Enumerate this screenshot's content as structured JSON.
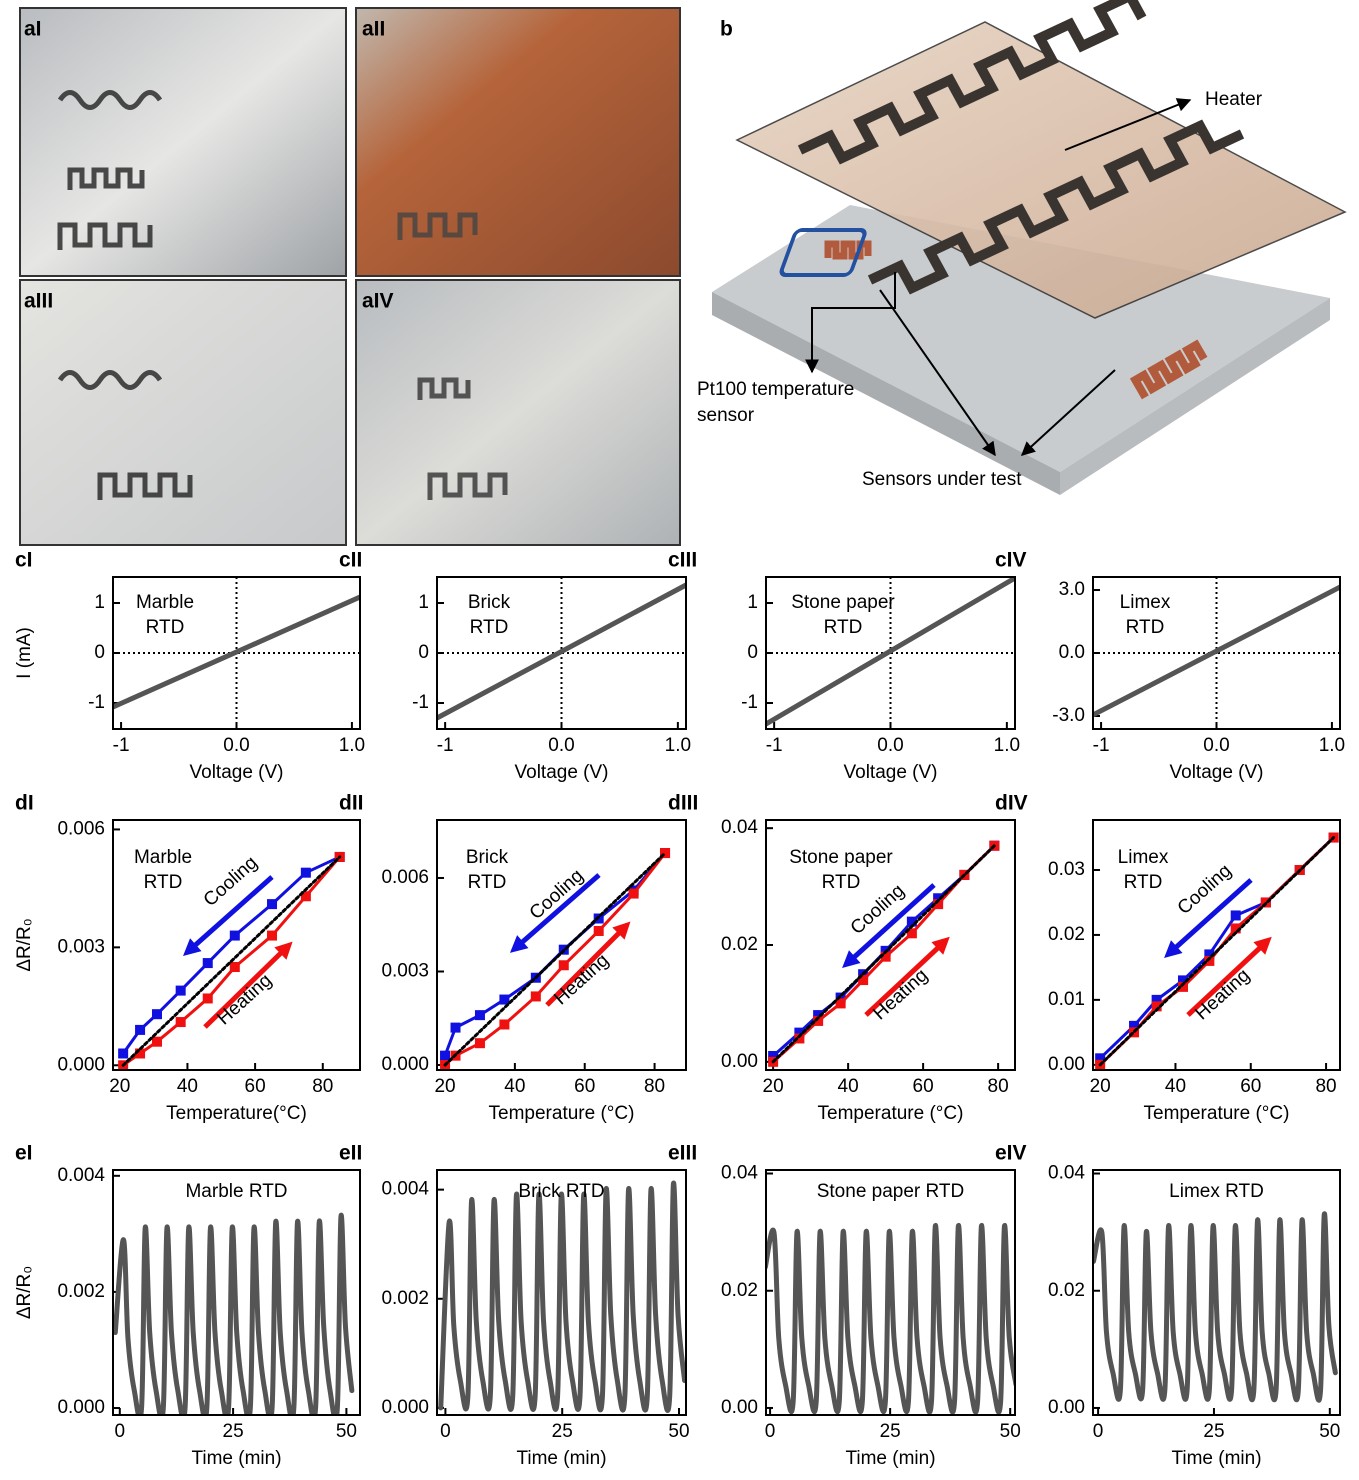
{
  "panels_a": [
    {
      "label": "aI"
    },
    {
      "label": "aII"
    },
    {
      "label": "aIII"
    },
    {
      "label": "aIV"
    }
  ],
  "panel_b": {
    "label": "b",
    "heater": "Heater",
    "pt100": [
      "Pt100 temperature",
      "sensor"
    ],
    "sensors": "Sensors under test"
  },
  "chart_data": [
    {
      "type": "line",
      "panel": "cI",
      "annotation": [
        "Marble",
        "RTD"
      ],
      "annotation_color": "#b3bd6f",
      "xlabel": "Voltage (V)",
      "ylabel": "I (mA)",
      "xlim": [
        -1.07,
        1.07
      ],
      "ylim": [
        -1.52,
        1.52
      ],
      "xticks": [
        -1,
        {
          "value": 0,
          "label": "0.0"
        },
        {
          "value": 1,
          "label": "1.0"
        }
      ],
      "yticks": [
        -1,
        0,
        1
      ],
      "zero_lines": true,
      "series": [
        {
          "color": "#555555",
          "x": [
            -1.07,
            1.07
          ],
          "values": [
            -1.08,
            1.12
          ]
        }
      ]
    },
    {
      "type": "line",
      "panel": "cII",
      "annotation": [
        "Brick",
        "RTD"
      ],
      "annotation_color": "#a0557a",
      "xlabel": "Voltage (V)",
      "xlim": [
        -1.07,
        1.07
      ],
      "ylim": [
        -1.52,
        1.52
      ],
      "xticks": [
        -1,
        {
          "value": 0,
          "label": "0.0"
        },
        {
          "value": 1,
          "label": "1.0"
        }
      ],
      "yticks": [
        -1,
        0,
        1
      ],
      "zero_lines": true,
      "series": [
        {
          "color": "#555555",
          "x": [
            -1.07,
            1.07
          ],
          "values": [
            -1.3,
            1.36
          ]
        }
      ]
    },
    {
      "type": "line",
      "panel": "cIII",
      "annotation": [
        "Stone paper",
        "RTD"
      ],
      "annotation_color": "#f07a5a",
      "xlabel": "Voltage (V)",
      "xlim": [
        -1.07,
        1.07
      ],
      "ylim": [
        -1.52,
        1.52
      ],
      "xticks": [
        -1,
        {
          "value": 0,
          "label": "0.0"
        },
        {
          "value": 1,
          "label": "1.0"
        }
      ],
      "yticks": [
        -1,
        0,
        1
      ],
      "zero_lines": true,
      "series": [
        {
          "color": "#555555",
          "x": [
            -1.07,
            1.07
          ],
          "values": [
            -1.42,
            1.5
          ]
        }
      ]
    },
    {
      "type": "line",
      "panel": "cIV",
      "annotation": [
        "Limex",
        "RTD"
      ],
      "annotation_color": "#6e80a0",
      "xlabel": "Voltage (V)",
      "xlim": [
        -1.07,
        1.07
      ],
      "ylim": [
        -3.62,
        3.62
      ],
      "xticks": [
        -1,
        {
          "value": 0,
          "label": "0.0"
        },
        {
          "value": 1,
          "label": "1.0"
        }
      ],
      "yticks": [
        {
          "value": -3,
          "label": "-3.0"
        },
        {
          "value": 0,
          "label": "0.0"
        },
        {
          "value": 3,
          "label": "3.0"
        }
      ],
      "zero_lines": true,
      "series": [
        {
          "color": "#555555",
          "x": [
            -1.07,
            1.07
          ],
          "values": [
            -2.95,
            3.14
          ]
        }
      ]
    },
    {
      "type": "hysteresis",
      "panel": "dI",
      "annotation": [
        "Marble",
        "RTD"
      ],
      "annotation_color": "#b3bd6f",
      "xlabel": "Temperature(°C)",
      "ylabel": "ΔR/R₀",
      "xlim": [
        18,
        91
      ],
      "ylim": [
        -0.00012,
        0.00624
      ],
      "xticks": [
        20,
        40,
        60,
        80
      ],
      "yticks": [
        {
          "value": 0,
          "label": "0.000"
        },
        0.003,
        0.006
      ],
      "series": [
        {
          "name": "Cooling",
          "color": "#1010e0",
          "x": [
            21,
            26,
            31,
            38,
            46,
            54,
            65,
            75,
            85
          ],
          "values": [
            0.0003,
            0.0009,
            0.0013,
            0.0019,
            0.0026,
            0.0033,
            0.0041,
            0.0049,
            0.0053
          ]
        },
        {
          "name": "Heating",
          "color": "#f01010",
          "x": [
            21,
            26,
            31,
            38,
            46,
            54,
            65,
            75,
            85
          ],
          "values": [
            0,
            0.0003,
            0.0006,
            0.0011,
            0.0017,
            0.0025,
            0.0033,
            0.0043,
            0.0053
          ]
        },
        {
          "color": "#000000",
          "dotted": true,
          "x": [
            21,
            85
          ],
          "values": [
            0,
            0.0053
          ]
        }
      ]
    },
    {
      "type": "hysteresis",
      "panel": "dII",
      "annotation": [
        "Brick",
        "RTD"
      ],
      "annotation_color": "#a0557a",
      "xlabel": "Temperature (°C)",
      "xlim": [
        17.7,
        89
      ],
      "ylim": [
        -0.00016,
        0.00786
      ],
      "xticks": [
        20,
        40,
        60,
        80
      ],
      "yticks": [
        {
          "value": 0,
          "label": "0.000"
        },
        0.003,
        0.006
      ],
      "series": [
        {
          "name": "Cooling",
          "color": "#1010e0",
          "x": [
            20,
            23,
            30,
            37,
            46,
            54,
            64,
            74,
            83
          ],
          "values": [
            0.0003,
            0.0012,
            0.0016,
            0.0021,
            0.0028,
            0.0037,
            0.0047,
            0.0056,
            0.0068
          ]
        },
        {
          "name": "Heating",
          "color": "#f01010",
          "x": [
            20,
            23,
            30,
            37,
            46,
            54,
            64,
            74,
            83
          ],
          "values": [
            0,
            0.0003,
            0.0007,
            0.0013,
            0.0022,
            0.0032,
            0.0043,
            0.0055,
            0.0068
          ]
        },
        {
          "color": "#000000",
          "dotted": true,
          "x": [
            20,
            83
          ],
          "values": [
            0,
            0.0068
          ]
        }
      ]
    },
    {
      "type": "hysteresis",
      "panel": "dIII",
      "annotation": [
        "Stone paper",
        "RTD"
      ],
      "annotation_color": "#f07a5a",
      "xlabel": "Temperature (°C)",
      "xlim": [
        18.1,
        84.5
      ],
      "ylim": [
        -0.0014,
        0.0414
      ],
      "xticks": [
        20,
        40,
        60,
        80
      ],
      "yticks": [
        {
          "value": 0,
          "label": "0.00"
        },
        0.02,
        0.04
      ],
      "series": [
        {
          "name": "Cooling",
          "color": "#1010e0",
          "x": [
            20,
            27,
            32,
            38,
            44,
            50,
            57,
            64,
            71,
            79
          ],
          "values": [
            0.001,
            0.005,
            0.008,
            0.011,
            0.015,
            0.019,
            0.024,
            0.028,
            0.032,
            0.037
          ]
        },
        {
          "name": "Heating",
          "color": "#f01010",
          "x": [
            20,
            27,
            32,
            38,
            44,
            50,
            57,
            64,
            71,
            79
          ],
          "values": [
            0,
            0.004,
            0.007,
            0.01,
            0.014,
            0.018,
            0.022,
            0.027,
            0.032,
            0.037
          ]
        },
        {
          "color": "#000000",
          "dotted": true,
          "x": [
            20,
            79
          ],
          "values": [
            0,
            0.037
          ]
        }
      ]
    },
    {
      "type": "hysteresis",
      "panel": "dIV",
      "annotation": [
        "Limex",
        "RTD"
      ],
      "annotation_color": "#6e80a0",
      "xlabel": "Temperature (°C)",
      "xlim": [
        18.1,
        83.7
      ],
      "ylim": [
        -0.0008,
        0.0377
      ],
      "xticks": [
        20,
        40,
        60,
        80
      ],
      "yticks": [
        {
          "value": 0,
          "label": "0.00"
        },
        0.01,
        0.02,
        0.03
      ],
      "series": [
        {
          "name": "Cooling",
          "color": "#1010e0",
          "x": [
            20,
            29,
            35,
            42,
            49,
            56,
            64,
            73,
            82
          ],
          "values": [
            0.001,
            0.006,
            0.01,
            0.013,
            0.017,
            0.023,
            0.025,
            0.03,
            0.035
          ]
        },
        {
          "name": "Heating",
          "color": "#f01010",
          "x": [
            20,
            29,
            35,
            42,
            49,
            56,
            64,
            73,
            82
          ],
          "values": [
            0,
            0.005,
            0.009,
            0.012,
            0.016,
            0.021,
            0.025,
            0.03,
            0.035
          ]
        },
        {
          "color": "#000000",
          "dotted": true,
          "x": [
            20,
            82
          ],
          "values": [
            0,
            0.035
          ]
        }
      ]
    },
    {
      "type": "timeseries",
      "panel": "eI",
      "annotation": "Marble RTD",
      "annotation_color": "#b3bd6f",
      "xlabel": "Time (min)",
      "ylabel": "ΔR/R₀",
      "xlim": [
        -1.5,
        53
      ],
      "ylim": [
        -0.00012,
        0.0041
      ],
      "xticks": [
        0,
        25,
        50
      ],
      "yticks": [
        {
          "value": 0,
          "label": "0.000"
        },
        0.002,
        0.004
      ],
      "series": [
        {
          "color": "#555555",
          "x": [
            -1,
            0.8,
            1.8,
            3.2,
            4.8,
            5.6,
            6.6,
            8,
            9.6,
            10.4,
            11.4,
            12.8,
            14.4,
            15.2,
            16.2,
            17.6,
            19.2,
            20,
            21,
            22.4,
            24,
            24.8,
            25.8,
            27.2,
            28.8,
            29.6,
            30.6,
            32,
            33.6,
            34.4,
            35.4,
            36.8,
            38.4,
            39.2,
            40.2,
            41.6,
            43.2,
            44,
            45,
            46.4,
            48,
            48.8,
            49.8,
            51.2
          ],
          "values": [
            0.0013,
            0.0029,
            0.0012,
            0.0003,
            0,
            0.0031,
            0.0013,
            0.0003,
            0,
            0.0031,
            0.0013,
            0.0003,
            0,
            0.0031,
            0.0013,
            0.0003,
            0,
            0.0031,
            0.0013,
            0.0003,
            0,
            0.0031,
            0.0013,
            0.0003,
            0,
            0.0031,
            0.0013,
            0.0003,
            0,
            0.0032,
            0.0013,
            0.0003,
            0,
            0.0032,
            0.0013,
            0.0003,
            0,
            0.0032,
            0.0014,
            0.0003,
            0,
            0.0033,
            0.0014,
            0.0003
          ]
        }
      ]
    },
    {
      "type": "timeseries",
      "panel": "eII",
      "annotation": "Brick RTD",
      "annotation_color": "#a0557a",
      "xlabel": "Time (min)",
      "xlim": [
        -1.8,
        51.5
      ],
      "ylim": [
        -0.00013,
        0.00436
      ],
      "xticks": [
        0,
        25,
        50
      ],
      "yticks": [
        {
          "value": 0,
          "label": "0.000"
        },
        0.002,
        0.004
      ],
      "series": [
        {
          "color": "#555555",
          "x": [
            -1,
            0.8,
            1.8,
            3.2,
            4.8,
            5.6,
            6.6,
            8,
            9.6,
            10.4,
            11.4,
            12.8,
            14.4,
            15.2,
            16.2,
            17.6,
            19.2,
            20,
            21,
            22.4,
            24,
            24.8,
            25.8,
            27.2,
            28.8,
            29.6,
            30.6,
            32,
            33.6,
            34.4,
            35.4,
            36.8,
            38.4,
            39.2,
            40.2,
            41.6,
            43.2,
            44,
            45,
            46.4,
            48,
            48.8,
            49.8,
            51.2
          ],
          "values": [
            0,
            0.0034,
            0.0015,
            0.0005,
            0.0002,
            0.0038,
            0.0016,
            0.0005,
            0.0002,
            0.0038,
            0.0016,
            0.0005,
            0.0002,
            0.0039,
            0.0016,
            0.0005,
            0.0002,
            0.0039,
            0.0016,
            0.0005,
            0.0002,
            0.0039,
            0.0016,
            0.0005,
            0.0002,
            0.0039,
            0.0016,
            0.0005,
            0.0002,
            0.004,
            0.0017,
            0.0005,
            0.0002,
            0.004,
            0.0017,
            0.0005,
            0.0002,
            0.004,
            0.0017,
            0.0005,
            0.0002,
            0.0041,
            0.0017,
            0.0005
          ]
        }
      ]
    },
    {
      "type": "timeseries",
      "panel": "eIII",
      "annotation": "Stone paper RTD",
      "annotation_color": "#f07a5a",
      "xlabel": "Time (min)",
      "xlim": [
        -0.85,
        51
      ],
      "ylim": [
        -0.0012,
        0.0406
      ],
      "xticks": [
        0,
        25,
        50
      ],
      "yticks": [
        {
          "value": 0,
          "label": "0.00"
        },
        0.02,
        0.04
      ],
      "series": [
        {
          "color": "#555555",
          "x": [
            -1,
            0.8,
            1.8,
            3.2,
            4.8,
            5.6,
            6.6,
            8,
            9.6,
            10.4,
            11.4,
            12.8,
            14.4,
            15.2,
            16.2,
            17.6,
            19.2,
            20,
            21,
            22.4,
            24,
            24.8,
            25.8,
            27.2,
            28.8,
            29.6,
            30.6,
            32,
            33.6,
            34.4,
            35.4,
            36.8,
            38.4,
            39.2,
            40.2,
            41.6,
            43.2,
            44,
            45,
            46.4,
            48,
            48.8,
            49.8,
            51.2
          ],
          "values": [
            0.024,
            0.03,
            0.012,
            0.004,
            0.001,
            0.03,
            0.012,
            0.004,
            0.001,
            0.03,
            0.012,
            0.004,
            0.001,
            0.03,
            0.012,
            0.004,
            0.001,
            0.03,
            0.012,
            0.004,
            0.001,
            0.03,
            0.012,
            0.004,
            0.001,
            0.03,
            0.012,
            0.004,
            0.001,
            0.031,
            0.012,
            0.004,
            0.001,
            0.031,
            0.012,
            0.004,
            0.001,
            0.031,
            0.012,
            0.004,
            0.001,
            0.031,
            0.012,
            0.004
          ]
        }
      ]
    },
    {
      "type": "timeseries",
      "panel": "eIV",
      "annotation": "Limex RTD",
      "annotation_color": "#6e80a0",
      "xlabel": "Time (min)",
      "xlim": [
        -1.1,
        52.2
      ],
      "ylim": [
        -0.0012,
        0.0406
      ],
      "xticks": [
        0,
        25,
        50
      ],
      "yticks": [
        {
          "value": 0,
          "label": "0.00"
        },
        0.02,
        0.04
      ],
      "series": [
        {
          "color": "#555555",
          "x": [
            -1,
            0.8,
            1.8,
            3.2,
            4.8,
            5.6,
            6.6,
            8,
            9.6,
            10.4,
            11.4,
            12.8,
            14.4,
            15.2,
            16.2,
            17.6,
            19.2,
            20,
            21,
            22.4,
            24,
            24.8,
            25.8,
            27.2,
            28.8,
            29.6,
            30.6,
            32,
            33.6,
            34.4,
            35.4,
            36.8,
            38.4,
            39.2,
            40.2,
            41.6,
            43.2,
            44,
            45,
            46.4,
            48,
            48.8,
            49.8,
            51.2
          ],
          "values": [
            0.025,
            0.03,
            0.013,
            0.006,
            0.003,
            0.031,
            0.013,
            0.006,
            0.003,
            0.03,
            0.013,
            0.006,
            0.003,
            0.031,
            0.013,
            0.006,
            0.003,
            0.031,
            0.013,
            0.006,
            0.003,
            0.031,
            0.013,
            0.006,
            0.003,
            0.031,
            0.013,
            0.006,
            0.003,
            0.032,
            0.013,
            0.006,
            0.003,
            0.032,
            0.013,
            0.006,
            0.003,
            0.032,
            0.013,
            0.006,
            0.003,
            0.033,
            0.014,
            0.006
          ]
        }
      ]
    }
  ]
}
